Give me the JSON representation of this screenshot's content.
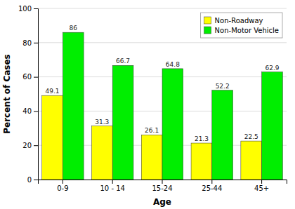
{
  "chart_data": {
    "type": "bar",
    "categories": [
      "0-9",
      "10 - 14",
      "15-24",
      "25-44",
      "45+"
    ],
    "series": [
      {
        "name": "Non-Roadway",
        "color": "#FFFF00",
        "values": [
          49.1,
          31.3,
          26.1,
          21.3,
          22.5
        ]
      },
      {
        "name": "Non-Motor Vehicle",
        "color": "#00EE00",
        "values": [
          86,
          66.7,
          64.8,
          52.2,
          62.9
        ]
      }
    ],
    "xlabel": "Age",
    "ylabel": "Percent of Cases",
    "ylim": [
      0,
      100
    ],
    "yticks": [
      0,
      20,
      40,
      60,
      80,
      100
    ],
    "grid": true,
    "legend": "upper right",
    "data_labels": true
  }
}
